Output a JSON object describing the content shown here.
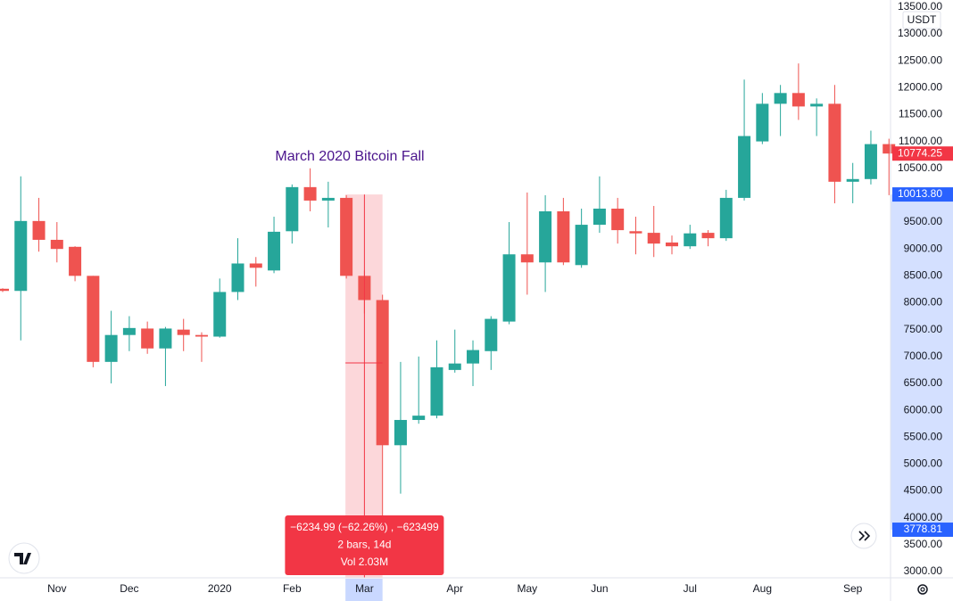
{
  "chart_data": {
    "type": "candlestick",
    "annotation": "March 2020 Bitcoin Fall",
    "currency": "USDT",
    "up_color": "#26a69a",
    "down_color": "#ef5350",
    "grid": true,
    "categories": [
      null,
      null,
      null,
      "Nov",
      null,
      null,
      null,
      "Dec",
      null,
      null,
      null,
      null,
      "2020",
      null,
      null,
      null,
      "Feb",
      null,
      null,
      null,
      "Mar",
      null,
      null,
      null,
      null,
      "Apr",
      null,
      null,
      null,
      "May",
      null,
      null,
      null,
      "Jun",
      null,
      null,
      null,
      null,
      "Jul",
      null,
      null,
      null,
      "Aug",
      null,
      null,
      null,
      null,
      "Sep",
      null,
      null
    ],
    "open": [
      8260,
      8220,
      9520,
      9170,
      9040,
      8500,
      6900,
      7400,
      7520,
      7150,
      7500,
      7400,
      7370,
      8200,
      8730,
      8600,
      9330,
      10150,
      9900,
      9950,
      8500,
      8050,
      5350,
      5820,
      5900,
      6750,
      6870,
      7100,
      7650,
      8900,
      8750,
      9700,
      8700,
      9450,
      9750,
      9330,
      9300,
      9120,
      9050,
      9300,
      9200,
      9950,
      11000,
      11700,
      11900,
      11650,
      11700,
      10250,
      10300,
      10950
    ],
    "high": [
      8270,
      10350,
      9950,
      9500,
      9050,
      8500,
      7850,
      7750,
      7650,
      7550,
      7700,
      7450,
      8450,
      9200,
      8850,
      9600,
      10200,
      10500,
      10250,
      10000,
      8600,
      8150,
      6900,
      7000,
      7300,
      7500,
      7300,
      7750,
      9500,
      10050,
      10000,
      9950,
      9750,
      10350,
      9950,
      9600,
      9800,
      9250,
      9450,
      9350,
      10100,
      12150,
      11900,
      12050,
      12450,
      11800,
      12050,
      10600,
      11200,
      11050
    ],
    "low": [
      8200,
      7300,
      8950,
      8750,
      8400,
      6800,
      6500,
      7100,
      7050,
      6450,
      7100,
      6900,
      7350,
      8050,
      8300,
      8550,
      9100,
      9700,
      9400,
      8450,
      7800,
      3800,
      4450,
      5750,
      5850,
      6700,
      6450,
      6750,
      7600,
      8150,
      8200,
      8700,
      8650,
      9300,
      9100,
      8900,
      8850,
      8900,
      9000,
      9050,
      9150,
      9900,
      10950,
      11100,
      11400,
      11100,
      9850,
      9850,
      10200,
      10000
    ],
    "close": [
      8220,
      9520,
      9170,
      9000,
      8500,
      6900,
      7400,
      7530,
      7150,
      7520,
      7400,
      7370,
      8200,
      8730,
      8650,
      9320,
      10150,
      9900,
      9950,
      8500,
      8050,
      5350,
      5820,
      5900,
      6800,
      6870,
      7120,
      7700,
      8900,
      8750,
      9700,
      8750,
      9450,
      9750,
      9350,
      9290,
      9100,
      9050,
      9290,
      9200,
      9950,
      11100,
      11700,
      11900,
      11650,
      11700,
      10250,
      10300,
      10950,
      10774.25
    ],
    "ylim": [
      2851,
      13630
    ],
    "yticks": [
      {
        "value": 3000,
        "label": "3000.00"
      },
      {
        "value": 3500,
        "label": "3500.00"
      },
      {
        "value": 4000,
        "label": "4000.00"
      },
      {
        "value": 4500,
        "label": "4500.00"
      },
      {
        "value": 5000,
        "label": "5000.00"
      },
      {
        "value": 5500,
        "label": "5500.00"
      },
      {
        "value": 6000,
        "label": "6000.00"
      },
      {
        "value": 6500,
        "label": "6500.00"
      },
      {
        "value": 7000,
        "label": "7000.00"
      },
      {
        "value": 7500,
        "label": "7500.00"
      },
      {
        "value": 8000,
        "label": "8000.00"
      },
      {
        "value": 8500,
        "label": "8500.00"
      },
      {
        "value": 9000,
        "label": "9000.00"
      },
      {
        "value": 9500,
        "label": "9500.00"
      },
      {
        "value": 10000,
        "label": "10000.00"
      },
      {
        "value": 10500,
        "label": "10500.00"
      },
      {
        "value": 11000,
        "label": "11000.00"
      },
      {
        "value": 11500,
        "label": "11500.00"
      },
      {
        "value": 12000,
        "label": "12000.00"
      },
      {
        "value": 12500,
        "label": "12500.00"
      },
      {
        "value": 13000,
        "label": "13000.00"
      },
      {
        "value": 13500,
        "label": "13500.00"
      }
    ],
    "price_labels": [
      {
        "value": 10774.25,
        "label": "10774.25",
        "color": "#f23645"
      },
      {
        "value": 10013.8,
        "label": "10013.80",
        "color": "#2962ff"
      },
      {
        "value": 3778.81,
        "label": "3778.81",
        "color": "#2962ff"
      }
    ],
    "measure": {
      "line1": "−6234.99 (−62.26%) , −623499",
      "line2": "2 bars, 14d",
      "line3": "Vol 2.03M"
    }
  }
}
